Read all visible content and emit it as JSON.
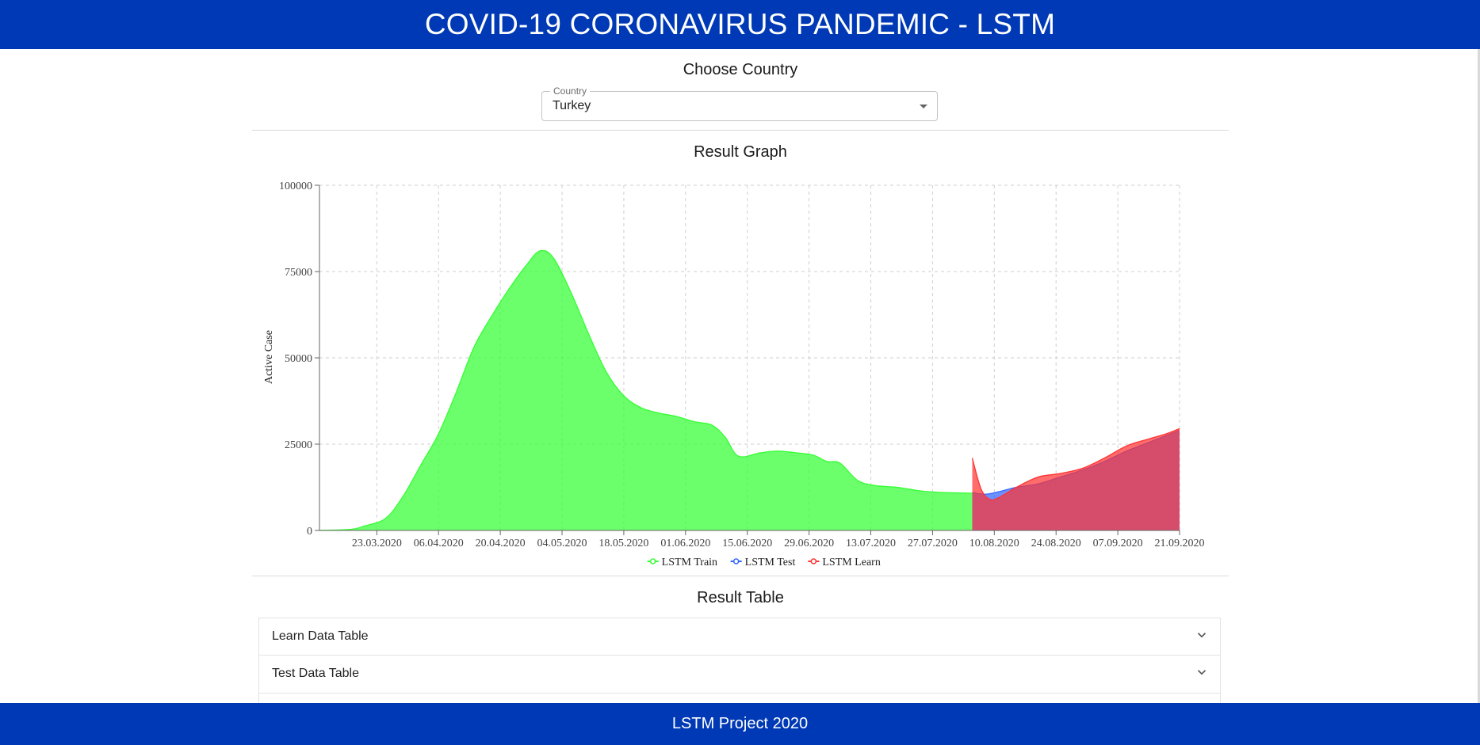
{
  "header": {
    "title": "COVID-19 CORONAVIRUS PANDEMIC - LSTM"
  },
  "country_section": {
    "title": "Choose Country",
    "select": {
      "legend": "Country",
      "value": "Turkey"
    }
  },
  "graph_section": {
    "title": "Result Graph"
  },
  "table_section": {
    "title": "Result Table",
    "panels": [
      {
        "label": "Learn Data Table"
      },
      {
        "label": "Test Data Table"
      }
    ]
  },
  "footer": {
    "text": "LSTM Project 2020"
  },
  "icons": {
    "select_caret": "caret-down-icon",
    "accordion": "chevron-down-icon"
  },
  "chart_data": {
    "type": "area",
    "title": "",
    "xlabel": "",
    "ylabel": "Active Case",
    "ylim": [
      0,
      100000
    ],
    "yticks": [
      0,
      25000,
      50000,
      75000,
      100000
    ],
    "x_start": "10.03.2020",
    "x_end": "21.09.2020",
    "xticks": [
      "23.03.2020",
      "06.04.2020",
      "20.04.2020",
      "04.05.2020",
      "18.05.2020",
      "01.06.2020",
      "15.06.2020",
      "29.06.2020",
      "13.07.2020",
      "27.07.2020",
      "10.08.2020",
      "24.08.2020",
      "07.09.2020",
      "21.09.2020"
    ],
    "grid": true,
    "legend_position": "bottom",
    "series": [
      {
        "name": "LSTM Train",
        "color": "#33ff33",
        "points": [
          [
            "10.03.2020",
            0
          ],
          [
            "17.03.2020",
            300
          ],
          [
            "20.03.2020",
            1200
          ],
          [
            "25.03.2020",
            3500
          ],
          [
            "29.03.2020",
            10000
          ],
          [
            "02.04.2020",
            19000
          ],
          [
            "06.04.2020",
            28000
          ],
          [
            "10.04.2020",
            40000
          ],
          [
            "14.04.2020",
            53000
          ],
          [
            "18.04.2020",
            62000
          ],
          [
            "22.04.2020",
            70000
          ],
          [
            "26.04.2020",
            77000
          ],
          [
            "29.04.2020",
            81000
          ],
          [
            "02.05.2020",
            79000
          ],
          [
            "06.05.2020",
            69000
          ],
          [
            "10.05.2020",
            57000
          ],
          [
            "14.05.2020",
            46000
          ],
          [
            "18.05.2020",
            39000
          ],
          [
            "22.05.2020",
            35500
          ],
          [
            "26.05.2020",
            34000
          ],
          [
            "30.05.2020",
            33000
          ],
          [
            "03.06.2020",
            31500
          ],
          [
            "07.06.2020",
            30500
          ],
          [
            "10.06.2020",
            27000
          ],
          [
            "13.06.2020",
            21500
          ],
          [
            "18.06.2020",
            22500
          ],
          [
            "22.06.2020",
            23000
          ],
          [
            "26.06.2020",
            22500
          ],
          [
            "30.06.2020",
            21800
          ],
          [
            "03.07.2020",
            20000
          ],
          [
            "06.07.2020",
            19500
          ],
          [
            "10.07.2020",
            14500
          ],
          [
            "14.07.2020",
            13000
          ],
          [
            "19.07.2020",
            12500
          ],
          [
            "24.07.2020",
            11500
          ],
          [
            "29.07.2020",
            11000
          ],
          [
            "05.08.2020",
            10800
          ]
        ]
      },
      {
        "name": "LSTM Test",
        "color": "#3366ff",
        "points": [
          [
            "05.08.2020",
            11000
          ],
          [
            "08.08.2020",
            10500
          ],
          [
            "11.08.2020",
            11200
          ],
          [
            "15.08.2020",
            12500
          ],
          [
            "20.08.2020",
            13500
          ],
          [
            "25.08.2020",
            15500
          ],
          [
            "30.08.2020",
            17500
          ],
          [
            "04.09.2020",
            20000
          ],
          [
            "09.09.2020",
            23000
          ],
          [
            "14.09.2020",
            25500
          ],
          [
            "18.09.2020",
            27500
          ],
          [
            "21.09.2020",
            29000
          ]
        ]
      },
      {
        "name": "LSTM Learn",
        "color": "#ff3333",
        "points": [
          [
            "05.08.2020",
            21000
          ],
          [
            "07.08.2020",
            12000
          ],
          [
            "09.08.2020",
            9000
          ],
          [
            "11.08.2020",
            9500
          ],
          [
            "15.08.2020",
            12500
          ],
          [
            "20.08.2020",
            15500
          ],
          [
            "25.08.2020",
            16500
          ],
          [
            "30.08.2020",
            18000
          ],
          [
            "04.09.2020",
            21000
          ],
          [
            "09.09.2020",
            24500
          ],
          [
            "14.09.2020",
            26500
          ],
          [
            "18.09.2020",
            28000
          ],
          [
            "21.09.2020",
            29500
          ]
        ]
      }
    ]
  }
}
